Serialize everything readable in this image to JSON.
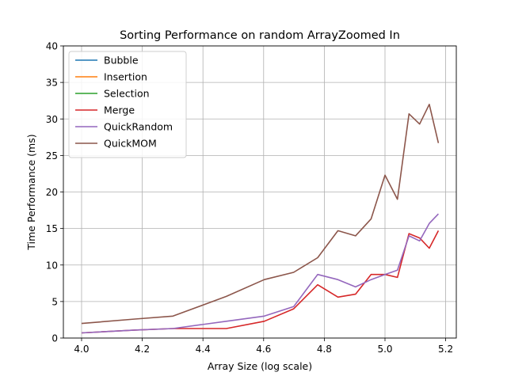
{
  "chart_data": {
    "type": "line",
    "title": "Sorting Performance on random ArrayZoomed In",
    "xlabel": "Array Size (log scale)",
    "ylabel": "Time Performance (ms)",
    "xlim": [
      3.94,
      5.235
    ],
    "ylim": [
      0,
      40
    ],
    "xticks": [
      4.0,
      4.2,
      4.4,
      4.6,
      4.8,
      5.0,
      5.2
    ],
    "xtick_labels": [
      "4.0",
      "4.2",
      "4.4",
      "4.6",
      "4.8",
      "5.0",
      "5.2"
    ],
    "yticks": [
      0,
      5,
      10,
      15,
      20,
      25,
      30,
      35,
      40
    ],
    "ytick_labels": [
      "0",
      "5",
      "10",
      "15",
      "20",
      "25",
      "30",
      "35",
      "40"
    ],
    "grid": true,
    "legend_position": "top-left",
    "series": [
      {
        "name": "Bubble",
        "color": "#1f77b4",
        "x": [],
        "y": []
      },
      {
        "name": "Insertion",
        "color": "#ff7f0e",
        "x": [],
        "y": []
      },
      {
        "name": "Selection",
        "color": "#2ca02c",
        "x": [],
        "y": []
      },
      {
        "name": "Merge",
        "color": "#d62728",
        "x": [
          4.0,
          4.176,
          4.301,
          4.477,
          4.602,
          4.699,
          4.778,
          4.845,
          4.903,
          4.954,
          5.0,
          5.041,
          5.079,
          5.114,
          5.146,
          5.176
        ],
        "y": [
          0.7,
          1.1,
          1.3,
          1.3,
          2.3,
          4.0,
          7.3,
          5.6,
          6.0,
          8.7,
          8.7,
          8.3,
          14.3,
          13.7,
          12.3,
          14.7
        ]
      },
      {
        "name": "QuickRandom",
        "color": "#9467bd",
        "x": [
          4.0,
          4.176,
          4.301,
          4.477,
          4.602,
          4.699,
          4.778,
          4.845,
          4.903,
          4.954,
          5.0,
          5.041,
          5.079,
          5.114,
          5.146,
          5.176
        ],
        "y": [
          0.7,
          1.1,
          1.3,
          2.3,
          3.0,
          4.3,
          8.7,
          8.0,
          7.0,
          8.0,
          8.7,
          9.3,
          14.0,
          13.3,
          15.7,
          17.0
        ]
      },
      {
        "name": "QuickMOM",
        "color": "#8c564b",
        "x": [
          4.0,
          4.176,
          4.301,
          4.477,
          4.602,
          4.699,
          4.778,
          4.845,
          4.903,
          4.954,
          5.0,
          5.041,
          5.079,
          5.114,
          5.146,
          5.176
        ],
        "y": [
          2.0,
          2.6,
          3.0,
          5.7,
          8.0,
          9.0,
          11.0,
          14.7,
          14.0,
          16.3,
          22.3,
          19.0,
          30.7,
          29.3,
          32.0,
          26.7
        ]
      }
    ]
  }
}
